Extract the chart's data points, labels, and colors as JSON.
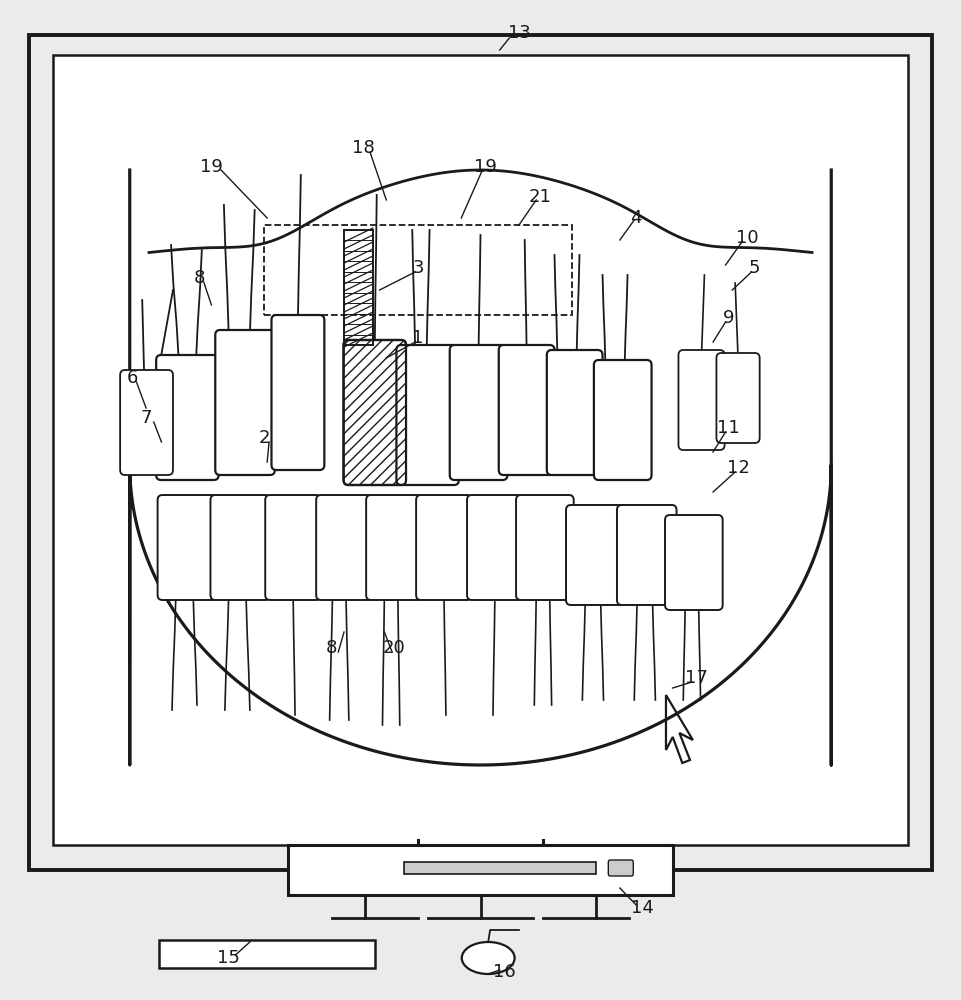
{
  "bg_color": "#ebebeb",
  "monitor_bg": "#ffffff",
  "line_color": "#1a1a1a",
  "label_color": "#1a1a1a",
  "font_size": 13,
  "lw": 1.5
}
